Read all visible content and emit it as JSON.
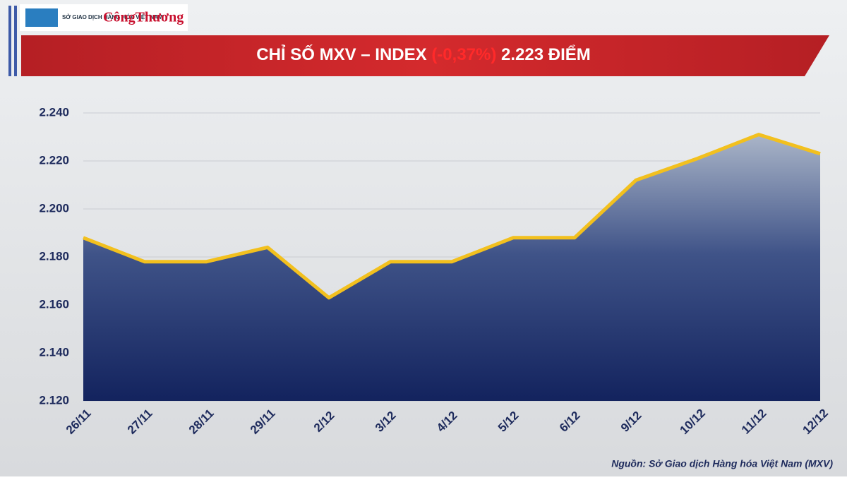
{
  "logos": {
    "exchange": "SỞ GIAO DỊCH HÀNG HÓA VIỆT NAM",
    "newspaper": "CôngThương"
  },
  "chart_data": {
    "type": "area",
    "title": [
      "CHỈ SỐ MXV – INDEX ",
      "(-0,37%)",
      " 2.223 ĐIỂM"
    ],
    "categories": [
      "26/11",
      "27/11",
      "28/11",
      "29/11",
      "2/12",
      "3/12",
      "4/12",
      "5/12",
      "6/12",
      "9/12",
      "10/12",
      "11/12",
      "12/12"
    ],
    "values": [
      2188,
      2178,
      2178,
      2184,
      2163,
      2178,
      2178,
      2188,
      2188,
      2212,
      2221,
      2231,
      2223
    ],
    "color": "#f2c01e",
    "ylim": [
      2120,
      2240
    ],
    "yticks": [
      {
        "value": 2120,
        "label": "2.120"
      },
      {
        "value": 2140,
        "label": "2.140"
      },
      {
        "value": 2160,
        "label": "2.160"
      },
      {
        "value": 2180,
        "label": "2.180"
      },
      {
        "value": 2200,
        "label": "2.200"
      },
      {
        "value": 2220,
        "label": "2.220"
      },
      {
        "value": 2240,
        "label": "2.240"
      }
    ],
    "grid": true,
    "source": "Nguồn: Sở Giao dịch Hàng hóa Việt Nam (MXV)"
  }
}
